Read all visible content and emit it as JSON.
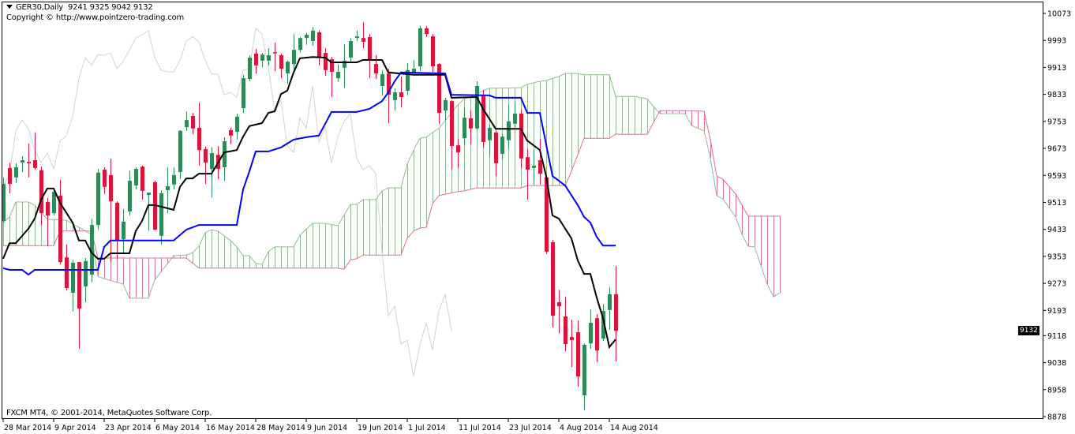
{
  "header": {
    "symbol": "GER30,Daily",
    "ohlc_readout": "9241 9325 9042 9132",
    "copyright": "Copyright © http://www.pointzero-trading.com"
  },
  "footer": {
    "platform": "FXCM MT4, © 2001-2014, MetaQuotes Software Corp."
  },
  "current_price_label": "9132",
  "colors": {
    "bull": "#2E8B57",
    "bear": "#DC143C",
    "tenkan": "#000000",
    "kijun": "#0000FF",
    "chikou": "#D3D3D3",
    "span_a": "#8FBC8F",
    "span_b": "#DB7093",
    "frame": "#000000"
  },
  "chart_data": {
    "type": "candlestick",
    "title": "GER30,Daily",
    "indicator": "Ichimoku Kinko Hyo",
    "ylim": [
      8878,
      10073
    ],
    "y_ticks": [
      10073,
      9993,
      9913,
      9833,
      9753,
      9673,
      9593,
      9513,
      9433,
      9353,
      9273,
      9193,
      9118,
      9038,
      8958,
      8878
    ],
    "x_ticks": [
      {
        "label": "28 Mar 2014",
        "bar": 0
      },
      {
        "label": "9 Apr 2014",
        "bar": 8
      },
      {
        "label": "23 Apr 2014",
        "bar": 16
      },
      {
        "label": "6 May 2014",
        "bar": 24
      },
      {
        "label": "16 May 2014",
        "bar": 32
      },
      {
        "label": "28 May 2014",
        "bar": 40
      },
      {
        "label": "9 Jun 2014",
        "bar": 48
      },
      {
        "label": "19 Jun 2014",
        "bar": 56
      },
      {
        "label": "1 Jul 2014",
        "bar": 64
      },
      {
        "label": "11 Jul 2014",
        "bar": 72
      },
      {
        "label": "23 Jul 2014",
        "bar": 80
      },
      {
        "label": "4 Aug 2014",
        "bar": 88
      },
      {
        "label": "14 Aug 2014",
        "bar": 96
      }
    ],
    "ohlc_fields": [
      "open",
      "high",
      "low",
      "close"
    ],
    "ohlc": [
      [
        9458,
        9587,
        9451,
        9568
      ],
      [
        9615,
        9631,
        9540,
        9568
      ],
      [
        9587,
        9629,
        9570,
        9617
      ],
      [
        9631,
        9650,
        9603,
        9638
      ],
      [
        9633,
        9687,
        9587,
        9629
      ],
      [
        9638,
        9720,
        9610,
        9615
      ],
      [
        9608,
        9619,
        9446,
        9481
      ],
      [
        9514,
        9526,
        9383,
        9474
      ],
      [
        9481,
        9551,
        9474,
        9544
      ],
      [
        9533,
        9580,
        9329,
        9336
      ],
      [
        9350,
        9388,
        9252,
        9259
      ],
      [
        9245,
        9343,
        9189,
        9334
      ],
      [
        9336,
        9336,
        9079,
        9198
      ],
      [
        9264,
        9348,
        9217,
        9339
      ],
      [
        9299,
        9465,
        9276,
        9446
      ],
      [
        9446,
        9612,
        9432,
        9601
      ],
      [
        9610,
        9617,
        9538,
        9559
      ],
      [
        9594,
        9643,
        9339,
        9516
      ],
      [
        9512,
        9516,
        9346,
        9400
      ],
      [
        9404,
        9493,
        9364,
        9456
      ],
      [
        9486,
        9608,
        9474,
        9577
      ],
      [
        9563,
        9617,
        9551,
        9612
      ],
      [
        9619,
        9622,
        9521,
        9547
      ],
      [
        9535,
        9542,
        9428,
        9542
      ],
      [
        9573,
        9577,
        9430,
        9432
      ],
      [
        9414,
        9549,
        9388,
        9540
      ],
      [
        9549,
        9617,
        9481,
        9561
      ],
      [
        9566,
        9617,
        9551,
        9594
      ],
      [
        9603,
        9727,
        9582,
        9725
      ],
      [
        9736,
        9783,
        9725,
        9757
      ],
      [
        9769,
        9778,
        9715,
        9732
      ],
      [
        9734,
        9809,
        9622,
        9668
      ],
      [
        9671,
        9678,
        9568,
        9631
      ],
      [
        9612,
        9676,
        9526,
        9659
      ],
      [
        9654,
        9680,
        9582,
        9612
      ],
      [
        9617,
        9706,
        9577,
        9694
      ],
      [
        9727,
        9734,
        9685,
        9711
      ],
      [
        9722,
        9776,
        9699,
        9767
      ],
      [
        9792,
        9891,
        9778,
        9881
      ],
      [
        9879,
        9949,
        9872,
        9942
      ],
      [
        9954,
        9968,
        9895,
        9919
      ],
      [
        9933,
        9956,
        9914,
        9951
      ],
      [
        9933,
        9970,
        9919,
        9949
      ],
      [
        9958,
        9986,
        9902,
        9956
      ],
      [
        9949,
        9954,
        9881,
        9909
      ],
      [
        9895,
        9933,
        9863,
        9930
      ],
      [
        9923,
        10012,
        9907,
        9965
      ],
      [
        9965,
        10003,
        9956,
        10000
      ],
      [
        10000,
        10015,
        9980,
        10010
      ],
      [
        9991,
        10033,
        9977,
        10022
      ],
      [
        10017,
        10022,
        9919,
        9942
      ],
      [
        9956,
        9970,
        9888,
        9905
      ],
      [
        9937,
        9944,
        9825,
        9900
      ],
      [
        9881,
        9923,
        9870,
        9900
      ],
      [
        9912,
        9982,
        9853,
        9933
      ],
      [
        9942,
        10000,
        9926,
        9991
      ],
      [
        10000,
        10022,
        9991,
        10005
      ],
      [
        10000,
        10047,
        9970,
        9989
      ],
      [
        10003,
        10012,
        9881,
        9933
      ],
      [
        9923,
        9949,
        9879,
        9895
      ],
      [
        9858,
        9905,
        9830,
        9893
      ],
      [
        9895,
        9909,
        9748,
        9832
      ],
      [
        9816,
        9851,
        9785,
        9839
      ],
      [
        9839,
        9886,
        9795,
        9825
      ],
      [
        9844,
        9926,
        9830,
        9905
      ],
      [
        9898,
        9935,
        9888,
        9909
      ],
      [
        9916,
        10036,
        9902,
        10029
      ],
      [
        10029,
        10036,
        10003,
        10012
      ],
      [
        10005,
        10012,
        9898,
        9916
      ],
      [
        9923,
        9926,
        9746,
        9778
      ],
      [
        9785,
        9823,
        9757,
        9816
      ],
      [
        9813,
        9816,
        9610,
        9680
      ],
      [
        9682,
        9703,
        9615,
        9661
      ],
      [
        9703,
        9792,
        9685,
        9764
      ],
      [
        9762,
        9785,
        9685,
        9732
      ],
      [
        9732,
        9872,
        9727,
        9858
      ],
      [
        9830,
        9846,
        9676,
        9692
      ],
      [
        9697,
        9743,
        9650,
        9734
      ],
      [
        9720,
        9725,
        9591,
        9629
      ],
      [
        9657,
        9715,
        9640,
        9708
      ],
      [
        9697,
        9802,
        9671,
        9753
      ],
      [
        9746,
        9809,
        9734,
        9776
      ],
      [
        9776,
        9790,
        9615,
        9643
      ],
      [
        9647,
        9671,
        9521,
        9610
      ],
      [
        9615,
        9669,
        9568,
        9622
      ],
      [
        9638,
        9701,
        9568,
        9598
      ],
      [
        9587,
        9591,
        9360,
        9367
      ],
      [
        9395,
        9402,
        9142,
        9177
      ],
      [
        9217,
        9254,
        9124,
        9205
      ],
      [
        9175,
        9233,
        9072,
        9093
      ],
      [
        9114,
        9166,
        9025,
        9105
      ],
      [
        9128,
        9163,
        8967,
        8997
      ],
      [
        8941,
        9095,
        8897,
        9091
      ],
      [
        9095,
        9196,
        9079,
        9156
      ],
      [
        9170,
        9182,
        9039,
        9074
      ],
      [
        9109,
        9212,
        9102,
        9191
      ],
      [
        9194,
        9262,
        9135,
        9241
      ],
      [
        9241,
        9325,
        9042,
        9132
      ]
    ],
    "chikou_shift": 26,
    "tenkan": [
      [
        0,
        9346
      ],
      [
        1,
        9392
      ],
      [
        2,
        9392
      ],
      [
        4,
        9435
      ],
      [
        5,
        9465
      ],
      [
        6,
        9521
      ],
      [
        7,
        9554
      ],
      [
        8,
        9554
      ],
      [
        9,
        9512
      ],
      [
        11,
        9453
      ],
      [
        12,
        9400
      ],
      [
        13,
        9400
      ],
      [
        14,
        9364
      ],
      [
        15,
        9346
      ],
      [
        16,
        9346
      ],
      [
        17,
        9362
      ],
      [
        20,
        9362
      ],
      [
        21,
        9428
      ],
      [
        22,
        9458
      ],
      [
        23,
        9505
      ],
      [
        24,
        9505
      ],
      [
        27,
        9491
      ],
      [
        28,
        9559
      ],
      [
        29,
        9584
      ],
      [
        30,
        9584
      ],
      [
        31,
        9598
      ],
      [
        33,
        9598
      ],
      [
        35,
        9661
      ],
      [
        37,
        9668
      ],
      [
        38,
        9708
      ],
      [
        39,
        9739
      ],
      [
        41,
        9748
      ],
      [
        42,
        9778
      ],
      [
        43,
        9783
      ],
      [
        44,
        9834
      ],
      [
        45,
        9844
      ],
      [
        46,
        9898
      ],
      [
        47,
        9940
      ],
      [
        49,
        9944
      ],
      [
        51,
        9942
      ],
      [
        52,
        9928
      ],
      [
        56,
        9928
      ],
      [
        57,
        9935
      ],
      [
        60,
        9935
      ],
      [
        61,
        9898
      ],
      [
        65,
        9891
      ],
      [
        70,
        9891
      ],
      [
        71,
        9823
      ],
      [
        75,
        9825
      ],
      [
        76,
        9790
      ],
      [
        78,
        9731
      ],
      [
        82,
        9731
      ],
      [
        83,
        9696
      ],
      [
        85,
        9668
      ],
      [
        86,
        9591
      ],
      [
        87,
        9474
      ],
      [
        88,
        9465
      ],
      [
        90,
        9406
      ],
      [
        91,
        9341
      ],
      [
        92,
        9301
      ],
      [
        93,
        9301
      ],
      [
        94,
        9231
      ],
      [
        95,
        9170
      ],
      [
        96,
        9084
      ],
      [
        97,
        9107
      ]
    ],
    "kijun": [
      [
        0,
        9318
      ],
      [
        1,
        9313
      ],
      [
        3,
        9313
      ],
      [
        4,
        9299
      ],
      [
        5,
        9313
      ],
      [
        15,
        9313
      ],
      [
        16,
        9381
      ],
      [
        17,
        9400
      ],
      [
        27,
        9400
      ],
      [
        29,
        9432
      ],
      [
        31,
        9446
      ],
      [
        37,
        9446
      ],
      [
        38,
        9551
      ],
      [
        39,
        9605
      ],
      [
        40,
        9664
      ],
      [
        42,
        9664
      ],
      [
        44,
        9676
      ],
      [
        46,
        9699
      ],
      [
        48,
        9706
      ],
      [
        50,
        9711
      ],
      [
        52,
        9781
      ],
      [
        56,
        9781
      ],
      [
        58,
        9790
      ],
      [
        60,
        9813
      ],
      [
        61,
        9839
      ],
      [
        62,
        9872
      ],
      [
        63,
        9898
      ],
      [
        70,
        9895
      ],
      [
        71,
        9832
      ],
      [
        77,
        9830
      ],
      [
        78,
        9823
      ],
      [
        82,
        9823
      ],
      [
        83,
        9778
      ],
      [
        85,
        9778
      ],
      [
        87,
        9591
      ],
      [
        89,
        9563
      ],
      [
        91,
        9505
      ],
      [
        92,
        9470
      ],
      [
        93,
        9453
      ],
      [
        94,
        9411
      ],
      [
        95,
        9385
      ],
      [
        97,
        9385
      ]
    ],
    "span_a": [
      [
        0,
        9453
      ],
      [
        1,
        9470
      ],
      [
        2,
        9514
      ],
      [
        4,
        9514
      ],
      [
        5,
        9505
      ],
      [
        7,
        9463
      ],
      [
        10,
        9460
      ],
      [
        12,
        9439
      ],
      [
        14,
        9418
      ],
      [
        15,
        9294
      ],
      [
        16,
        9287
      ],
      [
        19,
        9271
      ],
      [
        20,
        9229
      ],
      [
        23,
        9229
      ],
      [
        24,
        9283
      ],
      [
        27,
        9355
      ],
      [
        29,
        9357
      ],
      [
        30,
        9364
      ],
      [
        31,
        9383
      ],
      [
        32,
        9423
      ],
      [
        33,
        9432
      ],
      [
        34,
        9428
      ],
      [
        36,
        9400
      ],
      [
        37,
        9381
      ],
      [
        38,
        9355
      ],
      [
        39,
        9355
      ],
      [
        40,
        9332
      ],
      [
        41,
        9329
      ],
      [
        42,
        9367
      ],
      [
        43,
        9381
      ],
      [
        46,
        9381
      ],
      [
        47,
        9416
      ],
      [
        49,
        9451
      ],
      [
        51,
        9451
      ],
      [
        53,
        9444
      ],
      [
        55,
        9507
      ],
      [
        56,
        9507
      ],
      [
        57,
        9521
      ],
      [
        59,
        9521
      ],
      [
        60,
        9547
      ],
      [
        61,
        9556
      ],
      [
        63,
        9556
      ],
      [
        64,
        9626
      ],
      [
        65,
        9668
      ],
      [
        66,
        9703
      ],
      [
        67,
        9706
      ],
      [
        68,
        9720
      ],
      [
        69,
        9732
      ],
      [
        71,
        9778
      ],
      [
        72,
        9802
      ],
      [
        73,
        9820
      ],
      [
        74,
        9825
      ],
      [
        76,
        9844
      ],
      [
        77,
        9851
      ],
      [
        82,
        9853
      ],
      [
        83,
        9863
      ],
      [
        85,
        9872
      ],
      [
        86,
        9874
      ],
      [
        88,
        9886
      ],
      [
        89,
        9895
      ],
      [
        91,
        9895
      ],
      [
        92,
        9891
      ],
      [
        96,
        9891
      ],
      [
        97,
        9827
      ],
      [
        100,
        9827
      ],
      [
        102,
        9820
      ],
      [
        103,
        9797
      ],
      [
        104,
        9776
      ],
      [
        108,
        9776
      ],
      [
        109,
        9741
      ],
      [
        111,
        9725
      ],
      [
        112,
        9645
      ],
      [
        113,
        9533
      ],
      [
        114,
        9523
      ],
      [
        116,
        9470
      ],
      [
        117,
        9418
      ],
      [
        118,
        9383
      ],
      [
        119,
        9381
      ],
      [
        121,
        9271
      ],
      [
        122,
        9233
      ],
      [
        123,
        9245
      ]
    ],
    "span_b": [
      [
        0,
        9385
      ],
      [
        8,
        9385
      ],
      [
        9,
        9428
      ],
      [
        14,
        9428
      ],
      [
        15,
        9348
      ],
      [
        29,
        9348
      ],
      [
        31,
        9318
      ],
      [
        53,
        9318
      ],
      [
        54,
        9315
      ],
      [
        55,
        9343
      ],
      [
        56,
        9346
      ],
      [
        57,
        9357
      ],
      [
        63,
        9357
      ],
      [
        64,
        9407
      ],
      [
        65,
        9428
      ],
      [
        66,
        9437
      ],
      [
        67,
        9439
      ],
      [
        68,
        9509
      ],
      [
        69,
        9533
      ],
      [
        72,
        9545
      ],
      [
        73,
        9547
      ],
      [
        75,
        9556
      ],
      [
        82,
        9556
      ],
      [
        83,
        9563
      ],
      [
        89,
        9563
      ],
      [
        90,
        9605
      ],
      [
        92,
        9703
      ],
      [
        96,
        9703
      ],
      [
        97,
        9715
      ],
      [
        102,
        9715
      ],
      [
        104,
        9785
      ],
      [
        108,
        9785
      ],
      [
        111,
        9783
      ],
      [
        112,
        9699
      ],
      [
        113,
        9591
      ],
      [
        114,
        9582
      ],
      [
        116,
        9538
      ],
      [
        117,
        9505
      ],
      [
        118,
        9472
      ],
      [
        123,
        9472
      ]
    ]
  }
}
